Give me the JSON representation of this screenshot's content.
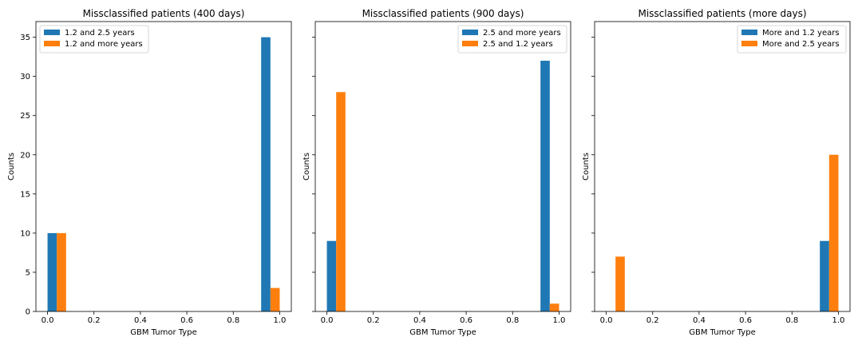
{
  "chart_data": [
    {
      "type": "bar",
      "title": "Missclassified patients (400 days)",
      "xlabel": "GBM Tumor Type",
      "ylabel": "Counts",
      "xlim": [
        -0.05,
        1.05
      ],
      "ylim": [
        0,
        37
      ],
      "xticks": [
        "0.0",
        "0.2",
        "0.4",
        "0.6",
        "0.8",
        "1.0"
      ],
      "yticks": [
        "0",
        "5",
        "10",
        "15",
        "20",
        "25",
        "30",
        "35"
      ],
      "bin_width": 0.04,
      "legend_position": "top-left",
      "series": [
        {
          "name": "1.2 and 2.5 years",
          "color": "#1f77b4",
          "bins": [
            {
              "x": 0.02,
              "value": 10
            },
            {
              "x": 0.94,
              "value": 35
            }
          ]
        },
        {
          "name": "1.2 and more years",
          "color": "#ff7f0e",
          "bins": [
            {
              "x": 0.06,
              "value": 10
            },
            {
              "x": 0.98,
              "value": 3
            }
          ]
        }
      ]
    },
    {
      "type": "bar",
      "title": "Missclassified patients (900 days)",
      "xlabel": "GBM Tumor Type",
      "ylabel": "Counts",
      "xlim": [
        -0.05,
        1.05
      ],
      "ylim": [
        0,
        37
      ],
      "xticks": [
        "0.0",
        "0.2",
        "0.4",
        "0.6",
        "0.8",
        "1.0"
      ],
      "yticks": [],
      "bin_width": 0.04,
      "legend_position": "top-right",
      "series": [
        {
          "name": "2.5 and more years",
          "color": "#1f77b4",
          "bins": [
            {
              "x": 0.02,
              "value": 9
            },
            {
              "x": 0.94,
              "value": 32
            }
          ]
        },
        {
          "name": "2.5 and 1.2 years",
          "color": "#ff7f0e",
          "bins": [
            {
              "x": 0.06,
              "value": 28
            },
            {
              "x": 0.98,
              "value": 1
            }
          ]
        }
      ]
    },
    {
      "type": "bar",
      "title": "Missclassified patients (more days)",
      "xlabel": "GBM Tumor Type",
      "ylabel": "Counts",
      "xlim": [
        -0.05,
        1.05
      ],
      "ylim": [
        0,
        37
      ],
      "xticks": [
        "0.0",
        "0.2",
        "0.4",
        "0.6",
        "0.8",
        "1.0"
      ],
      "yticks": [],
      "bin_width": 0.04,
      "legend_position": "top-right",
      "series": [
        {
          "name": "More and 1.2 years",
          "color": "#1f77b4",
          "bins": [
            {
              "x": 0.94,
              "value": 9
            }
          ]
        },
        {
          "name": "More and 2.5 years",
          "color": "#ff7f0e",
          "bins": [
            {
              "x": 0.06,
              "value": 7
            },
            {
              "x": 0.98,
              "value": 20
            }
          ]
        }
      ]
    }
  ]
}
